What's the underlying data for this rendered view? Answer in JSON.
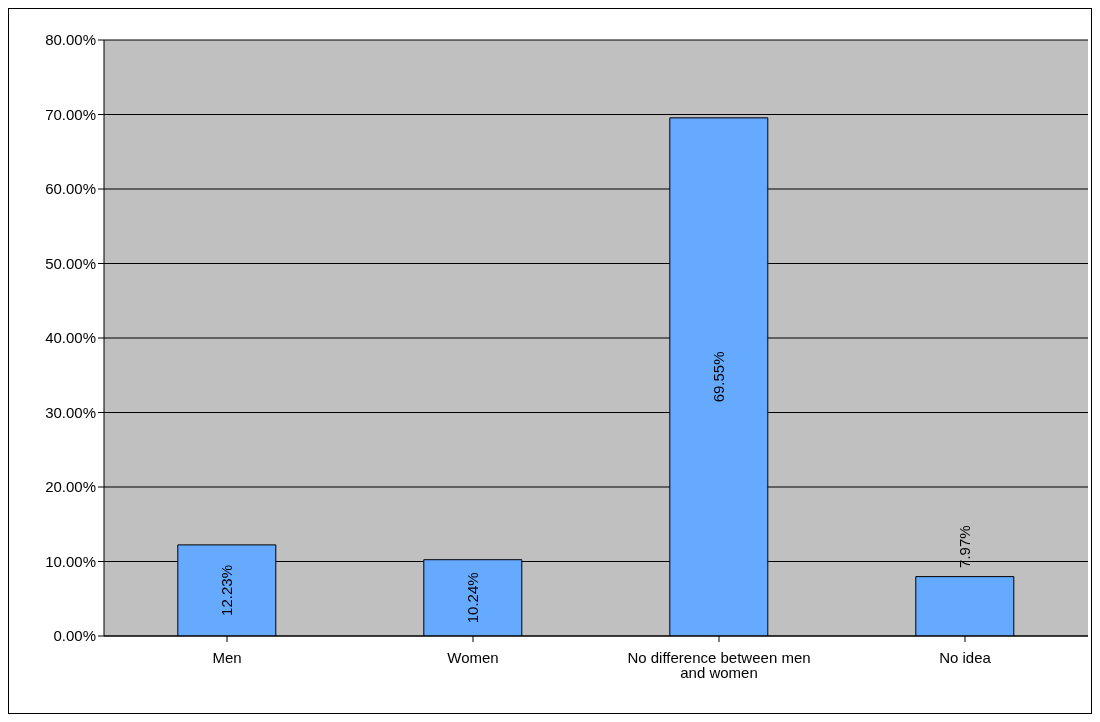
{
  "chart_data": {
    "type": "bar",
    "categories": [
      "Men",
      "Women",
      "No difference between men and women",
      "No idea"
    ],
    "values": [
      12.23,
      10.24,
      69.55,
      7.97
    ],
    "value_labels": [
      "12.23%",
      "10.24%",
      "69.55%",
      "7.97%"
    ],
    "color": "#66aaff",
    "ylim": [
      0,
      80
    ],
    "yticks": [
      {
        "value": 0,
        "label": "0.00%"
      },
      {
        "value": 10,
        "label": "10.00%"
      },
      {
        "value": 20,
        "label": "20.00%"
      },
      {
        "value": 30,
        "label": "30.00%"
      },
      {
        "value": 40,
        "label": "40.00%"
      },
      {
        "value": 50,
        "label": "50.00%"
      },
      {
        "value": 60,
        "label": "60.00%"
      },
      {
        "value": 70,
        "label": "70.00%"
      },
      {
        "value": 80,
        "label": "80.00%"
      }
    ],
    "grid": "y",
    "legend": false
  }
}
